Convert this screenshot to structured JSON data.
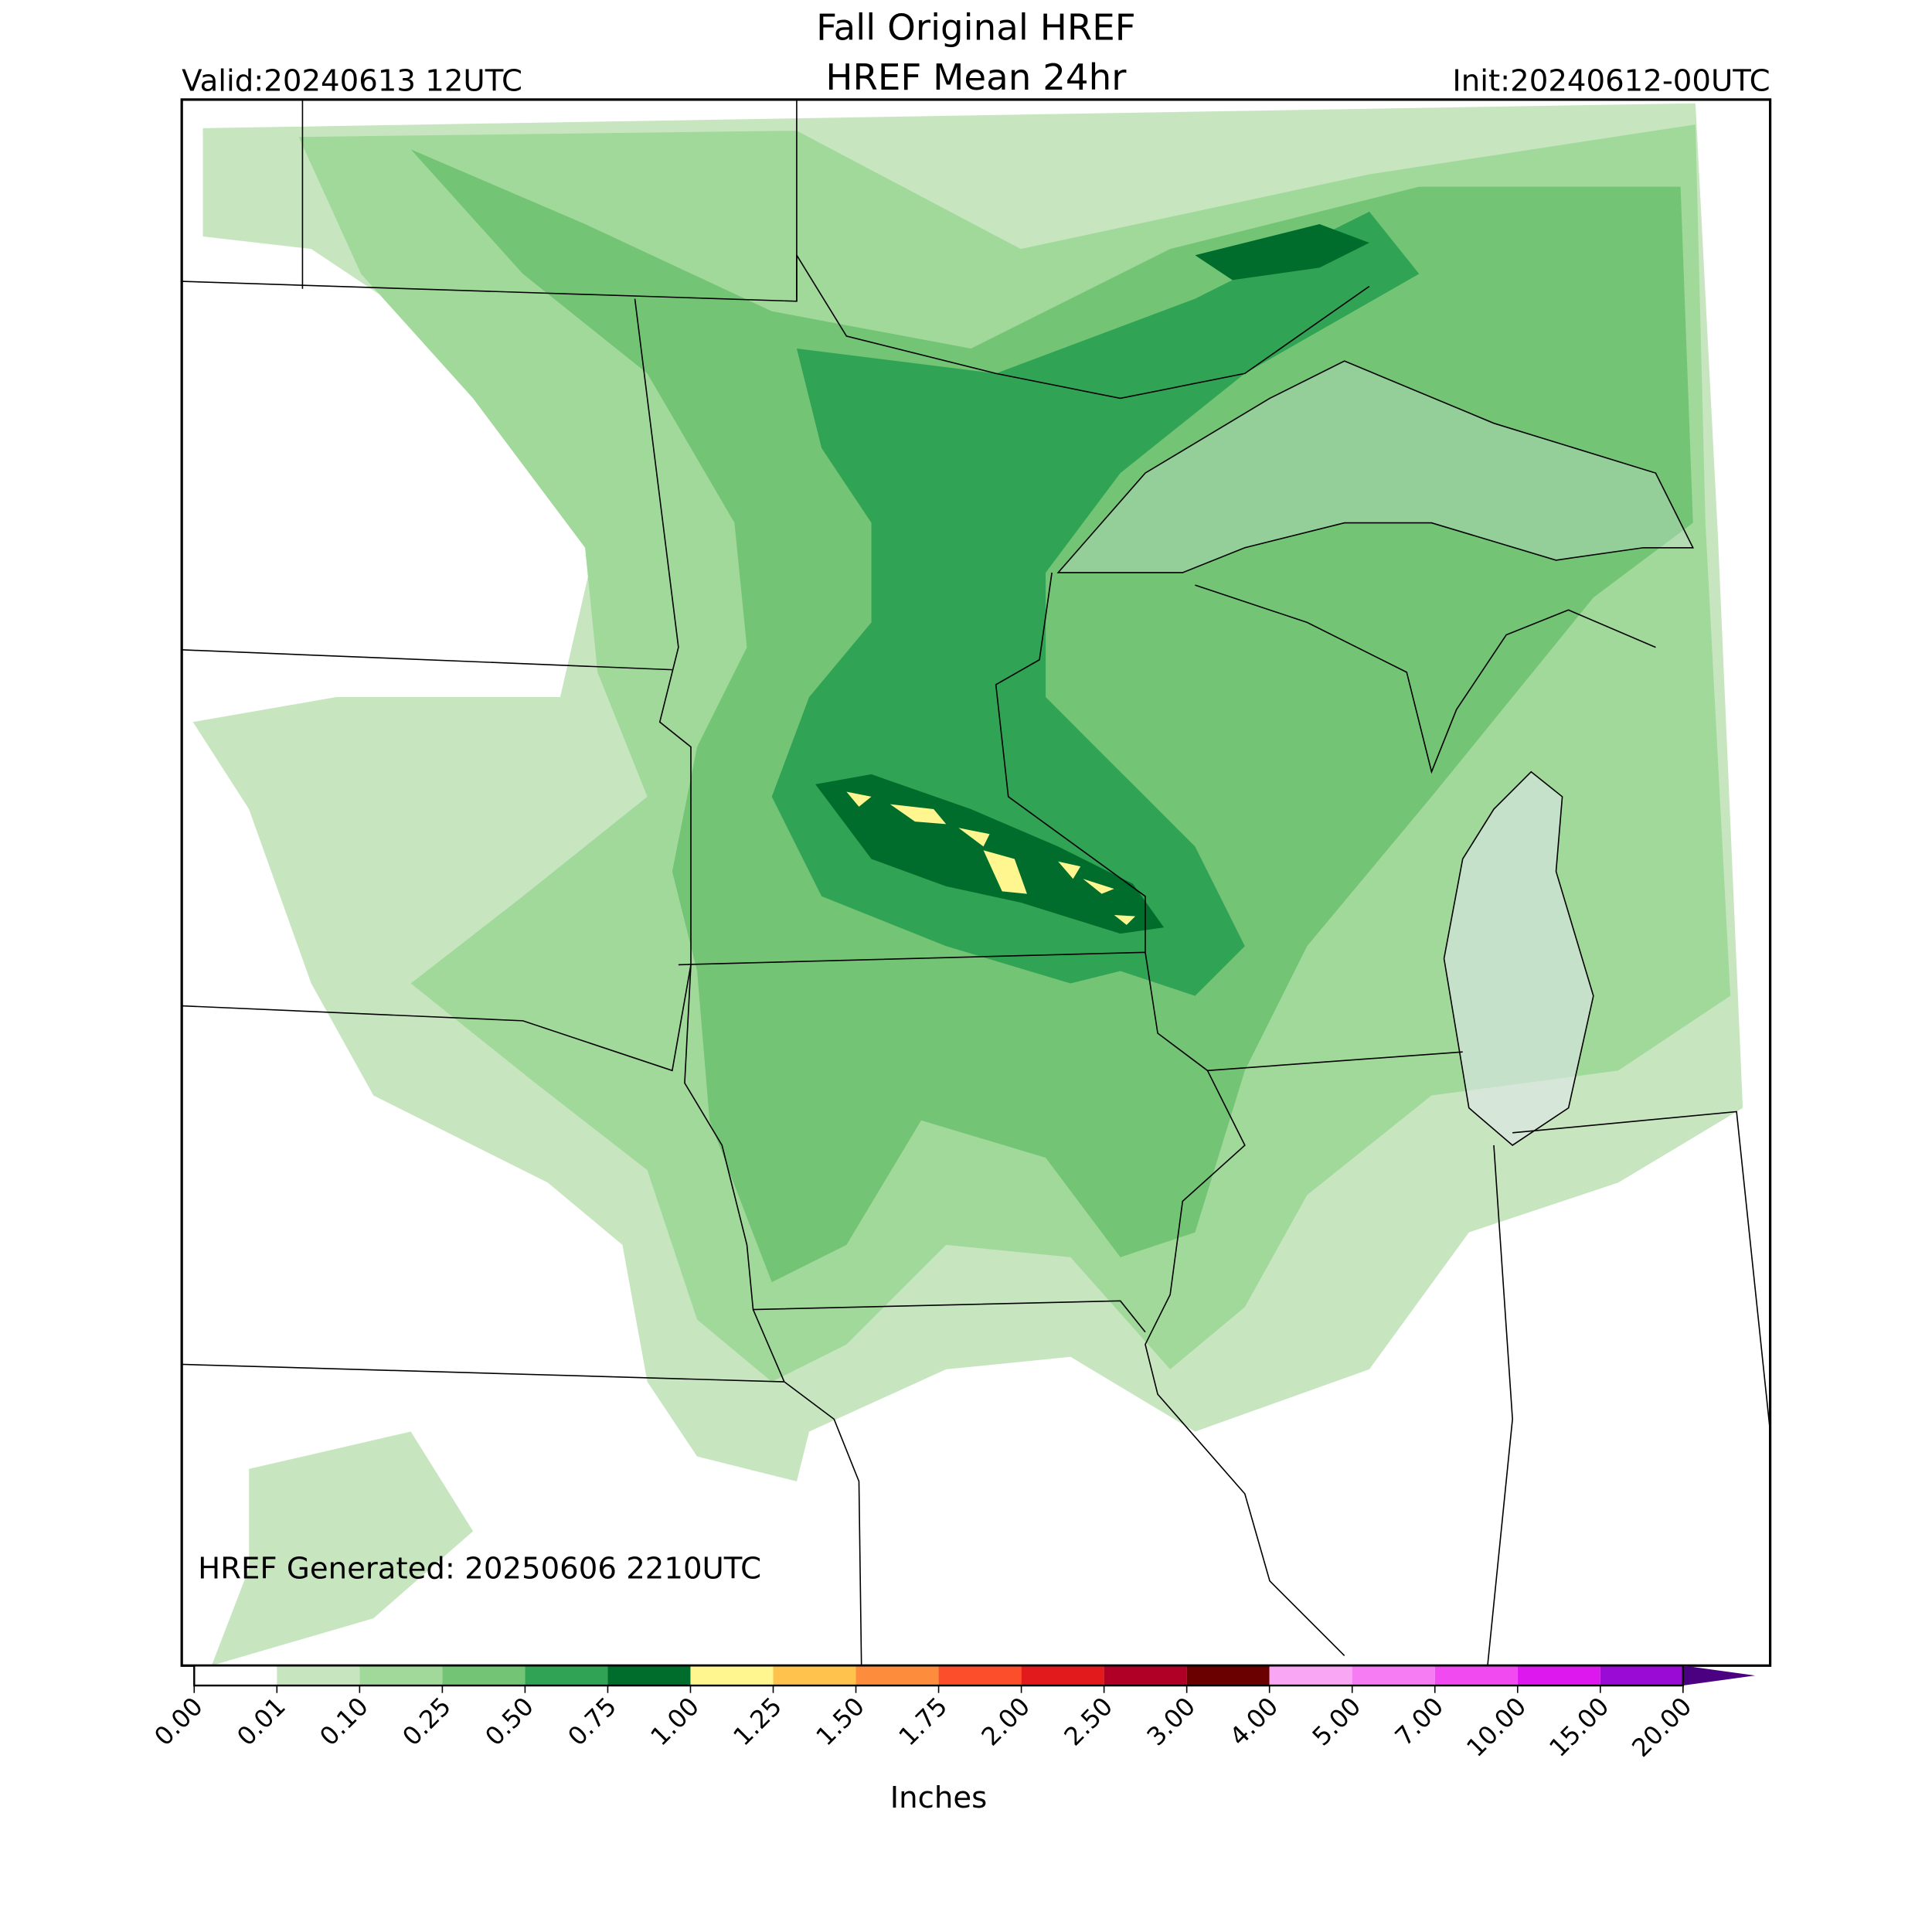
{
  "header": {
    "title": "Fall Original HREF",
    "subtitle": "HREF Mean 24hr",
    "valid": "Valid:20240613 12UTC",
    "init": "Init:20240612-00UTC"
  },
  "map": {
    "note": "HREF Generated: 20250606 2210UTC"
  },
  "colorbar": {
    "label": "Inches",
    "ticks": [
      "0.00",
      "0.01",
      "0.10",
      "0.25",
      "0.50",
      "0.75",
      "1.00",
      "1.25",
      "1.50",
      "1.75",
      "2.00",
      "2.50",
      "3.00",
      "4.00",
      "5.00",
      "7.00",
      "10.00",
      "15.00",
      "20.00"
    ],
    "colors": [
      "#ffffff",
      "#c7e6c0",
      "#a1d99b",
      "#74c476",
      "#31a354",
      "#006d2c",
      "#fff68f",
      "#ffc34d",
      "#fd8d3c",
      "#fc4e2a",
      "#e31a1c",
      "#b10026",
      "#6b0000",
      "#f9a6f5",
      "#f67cf3",
      "#f04af0",
      "#dc18ef",
      "#9a0bd6"
    ],
    "extend_color": "#4b0082"
  }
}
